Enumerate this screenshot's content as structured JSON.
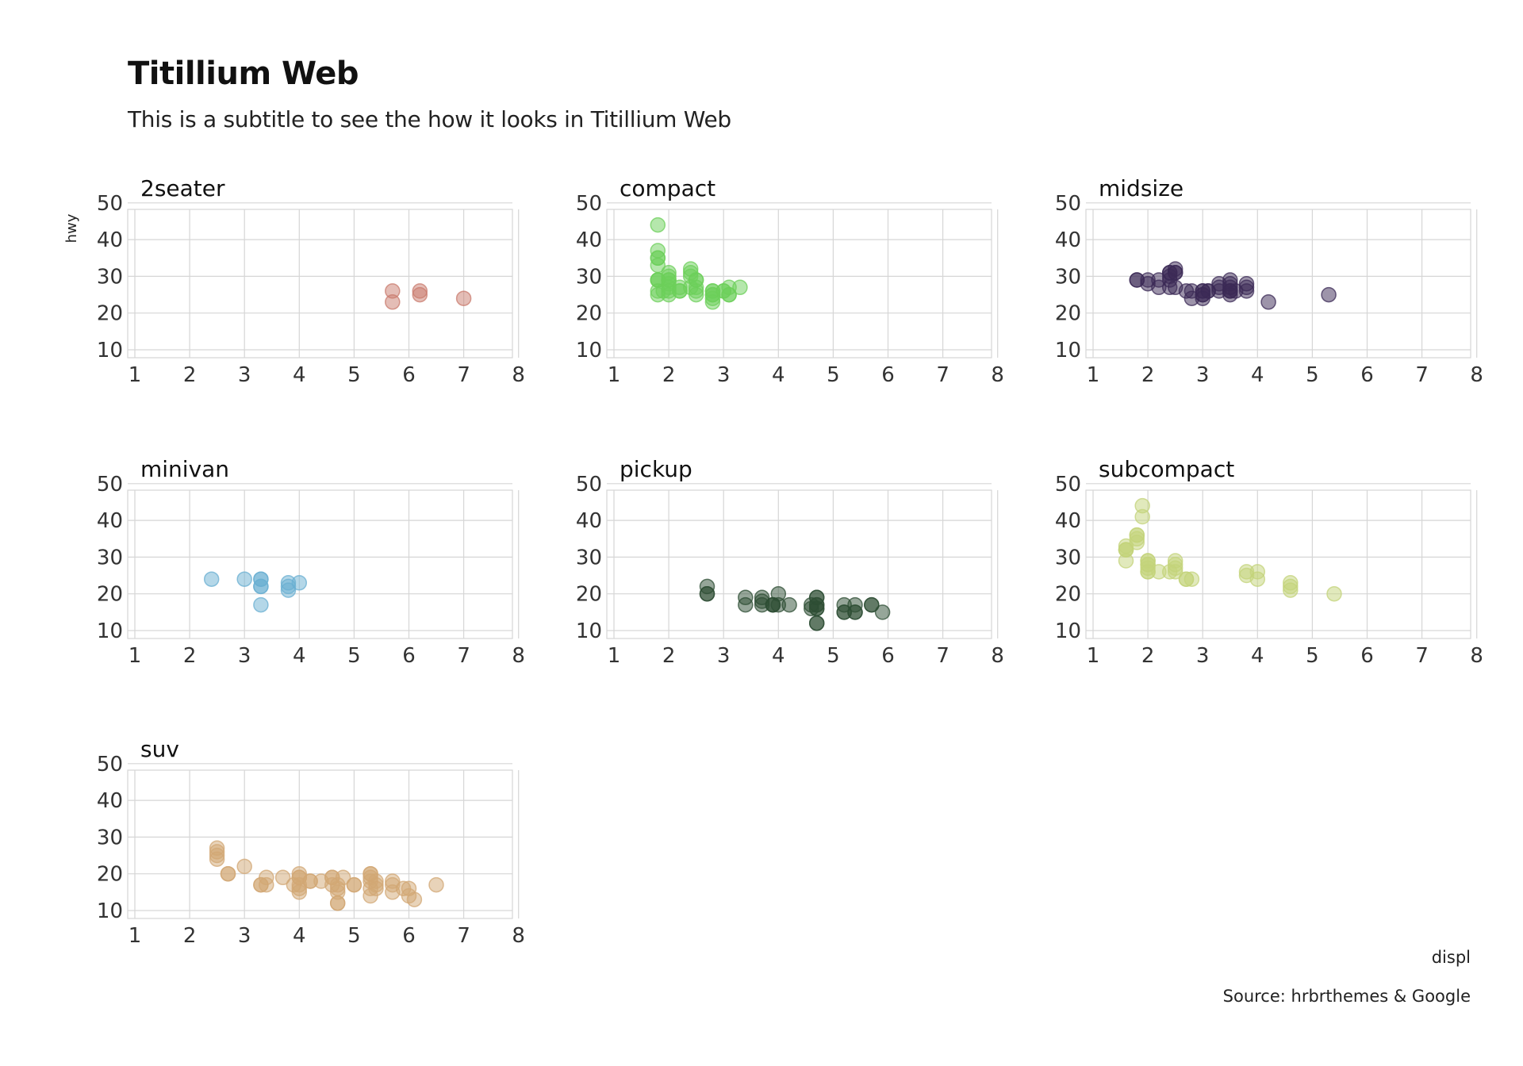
{
  "chart_data": {
    "type": "scatter",
    "title": "Titillium Web",
    "subtitle": "This is a subtitle to see the how it looks in Titillium Web",
    "xlabel": "displ",
    "ylabel": "hwy",
    "caption": "Source: hrbrthemes & Google",
    "xlim": [
      1,
      8
    ],
    "ylim": [
      10,
      50
    ],
    "x_ticks": [
      1,
      2,
      3,
      4,
      5,
      6,
      7,
      8
    ],
    "y_ticks": [
      10,
      20,
      30,
      40,
      50
    ],
    "grid": true,
    "legend": "none",
    "facets": [
      {
        "name": "2seater",
        "color": "#c97b6e",
        "points": [
          [
            5.7,
            26
          ],
          [
            5.7,
            23
          ],
          [
            6.2,
            26
          ],
          [
            6.2,
            25
          ],
          [
            7.0,
            24
          ]
        ]
      },
      {
        "name": "compact",
        "color": "#6ccf5a",
        "points": [
          [
            1.8,
            29
          ],
          [
            1.8,
            29
          ],
          [
            2.0,
            31
          ],
          [
            2.0,
            30
          ],
          [
            2.8,
            26
          ],
          [
            2.8,
            26
          ],
          [
            3.1,
            27
          ],
          [
            1.8,
            26
          ],
          [
            1.8,
            25
          ],
          [
            2.0,
            28
          ],
          [
            2.0,
            27
          ],
          [
            2.8,
            25
          ],
          [
            2.8,
            25
          ],
          [
            3.1,
            25
          ],
          [
            3.1,
            25
          ],
          [
            2.2,
            26
          ],
          [
            2.2,
            26
          ],
          [
            2.4,
            27
          ],
          [
            2.4,
            30
          ],
          [
            3.0,
            26
          ],
          [
            1.8,
            33
          ],
          [
            1.8,
            35
          ],
          [
            1.8,
            37
          ],
          [
            1.8,
            35
          ],
          [
            1.8,
            44
          ],
          [
            1.8,
            29
          ],
          [
            1.9,
            26
          ],
          [
            2.0,
            29
          ],
          [
            2.0,
            29
          ],
          [
            2.5,
            29
          ],
          [
            2.5,
            29
          ],
          [
            2.8,
            23
          ],
          [
            2.8,
            24
          ],
          [
            2.4,
            31
          ],
          [
            2.4,
            32
          ],
          [
            2.5,
            27
          ],
          [
            2.5,
            26
          ],
          [
            3.3,
            27
          ],
          [
            2.0,
            26
          ],
          [
            2.0,
            25
          ],
          [
            2.5,
            25
          ],
          [
            3.0,
            26
          ],
          [
            2.2,
            27
          ]
        ]
      },
      {
        "name": "midsize",
        "color": "#3b2a55",
        "points": [
          [
            2.4,
            27
          ],
          [
            2.4,
            30
          ],
          [
            3.1,
            26
          ],
          [
            3.5,
            29
          ],
          [
            3.6,
            26
          ],
          [
            2.4,
            31
          ],
          [
            3.0,
            26
          ],
          [
            3.3,
            28
          ],
          [
            3.3,
            26
          ],
          [
            3.3,
            27
          ],
          [
            3.8,
            27
          ],
          [
            3.8,
            26
          ],
          [
            3.8,
            28
          ],
          [
            2.4,
            29
          ],
          [
            2.4,
            31
          ],
          [
            2.5,
            32
          ],
          [
            2.5,
            27
          ],
          [
            3.5,
            26
          ],
          [
            3.5,
            26
          ],
          [
            3.0,
            25
          ],
          [
            3.0,
            25
          ],
          [
            3.5,
            25
          ],
          [
            1.8,
            29
          ],
          [
            1.8,
            29
          ],
          [
            2.0,
            28
          ],
          [
            2.0,
            29
          ],
          [
            2.8,
            26
          ],
          [
            2.8,
            24
          ],
          [
            3.1,
            26
          ],
          [
            4.2,
            23
          ],
          [
            5.3,
            25
          ],
          [
            2.2,
            29
          ],
          [
            2.2,
            27
          ],
          [
            2.5,
            31
          ],
          [
            2.5,
            31
          ],
          [
            2.7,
            26
          ],
          [
            3.0,
            26
          ],
          [
            3.0,
            24
          ],
          [
            3.5,
            28
          ],
          [
            3.5,
            26
          ],
          [
            3.5,
            27
          ]
        ]
      },
      {
        "name": "minivan",
        "color": "#6aafd2",
        "points": [
          [
            2.4,
            24
          ],
          [
            3.0,
            24
          ],
          [
            3.3,
            22
          ],
          [
            3.3,
            22
          ],
          [
            3.3,
            24
          ],
          [
            3.3,
            24
          ],
          [
            3.3,
            17
          ],
          [
            3.8,
            22
          ],
          [
            3.8,
            21
          ],
          [
            3.8,
            23
          ],
          [
            4.0,
            23
          ]
        ]
      },
      {
        "name": "pickup",
        "color": "#2e4d34",
        "points": [
          [
            2.7,
            20
          ],
          [
            2.7,
            20
          ],
          [
            2.7,
            22
          ],
          [
            3.4,
            17
          ],
          [
            3.4,
            19
          ],
          [
            3.7,
            18
          ],
          [
            3.7,
            17
          ],
          [
            3.9,
            17
          ],
          [
            3.9,
            17
          ],
          [
            4.0,
            20
          ],
          [
            4.0,
            17
          ],
          [
            4.2,
            17
          ],
          [
            4.7,
            17
          ],
          [
            4.7,
            12
          ],
          [
            4.7,
            17
          ],
          [
            4.7,
            16
          ],
          [
            4.7,
            12
          ],
          [
            4.7,
            16
          ],
          [
            4.7,
            19
          ],
          [
            5.2,
            15
          ],
          [
            5.2,
            15
          ],
          [
            5.2,
            17
          ],
          [
            5.4,
            17
          ],
          [
            5.4,
            15
          ],
          [
            5.7,
            17
          ],
          [
            5.9,
            15
          ],
          [
            4.6,
            16
          ],
          [
            4.6,
            17
          ],
          [
            5.4,
            15
          ],
          [
            5.7,
            17
          ],
          [
            4.7,
            19
          ],
          [
            3.7,
            19
          ],
          [
            3.9,
            17
          ]
        ]
      },
      {
        "name": "subcompact",
        "color": "#c3d37a",
        "points": [
          [
            1.6,
            33
          ],
          [
            1.6,
            32
          ],
          [
            1.6,
            32
          ],
          [
            1.6,
            29
          ],
          [
            1.6,
            32
          ],
          [
            1.8,
            34
          ],
          [
            1.8,
            36
          ],
          [
            1.8,
            36
          ],
          [
            1.9,
            44
          ],
          [
            1.9,
            41
          ],
          [
            2.0,
            29
          ],
          [
            2.0,
            26
          ],
          [
            2.0,
            28
          ],
          [
            2.0,
            29
          ],
          [
            2.0,
            26
          ],
          [
            2.2,
            26
          ],
          [
            2.4,
            26
          ],
          [
            2.5,
            27
          ],
          [
            2.5,
            26
          ],
          [
            2.5,
            28
          ],
          [
            2.7,
            24
          ],
          [
            2.8,
            24
          ],
          [
            3.8,
            26
          ],
          [
            3.8,
            25
          ],
          [
            4.0,
            26
          ],
          [
            4.0,
            24
          ],
          [
            4.6,
            21
          ],
          [
            4.6,
            22
          ],
          [
            4.6,
            23
          ],
          [
            5.4,
            20
          ],
          [
            2.0,
            27
          ],
          [
            2.0,
            28
          ],
          [
            2.5,
            29
          ],
          [
            2.7,
            24
          ],
          [
            1.8,
            35
          ]
        ]
      },
      {
        "name": "suv",
        "color": "#d2a774",
        "points": [
          [
            2.5,
            25
          ],
          [
            2.5,
            26
          ],
          [
            2.5,
            27
          ],
          [
            2.5,
            24
          ],
          [
            2.7,
            20
          ],
          [
            3.0,
            22
          ],
          [
            3.3,
            17
          ],
          [
            3.3,
            17
          ],
          [
            3.4,
            19
          ],
          [
            3.7,
            19
          ],
          [
            3.9,
            17
          ],
          [
            4.0,
            20
          ],
          [
            4.0,
            19
          ],
          [
            4.0,
            17
          ],
          [
            4.0,
            16
          ],
          [
            4.0,
            15
          ],
          [
            4.0,
            19
          ],
          [
            4.2,
            18
          ],
          [
            4.4,
            18
          ],
          [
            4.6,
            19
          ],
          [
            4.6,
            19
          ],
          [
            4.7,
            16
          ],
          [
            4.7,
            15
          ],
          [
            4.7,
            12
          ],
          [
            4.7,
            12
          ],
          [
            4.8,
            19
          ],
          [
            5.0,
            17
          ],
          [
            5.3,
            14
          ],
          [
            5.3,
            16
          ],
          [
            5.3,
            20
          ],
          [
            5.3,
            19
          ],
          [
            5.4,
            17
          ],
          [
            5.4,
            18
          ],
          [
            5.7,
            17
          ],
          [
            5.7,
            15
          ],
          [
            5.9,
            16
          ],
          [
            6.0,
            16
          ],
          [
            6.0,
            14
          ],
          [
            6.1,
            13
          ],
          [
            6.5,
            17
          ],
          [
            5.3,
            18
          ],
          [
            4.6,
            17
          ],
          [
            4.2,
            18
          ],
          [
            5.0,
            17
          ],
          [
            5.7,
            18
          ],
          [
            5.4,
            16
          ],
          [
            5.3,
            20
          ],
          [
            3.4,
            17
          ],
          [
            4.7,
            17
          ],
          [
            2.7,
            20
          ]
        ]
      }
    ]
  }
}
